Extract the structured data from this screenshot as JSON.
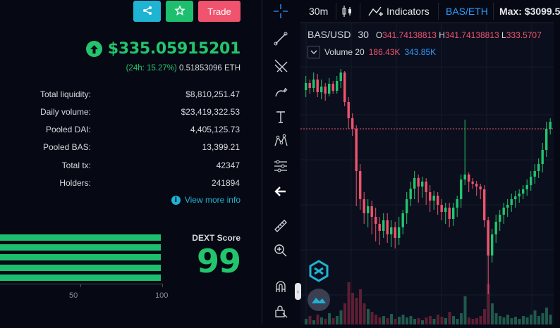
{
  "header_buttons": {
    "share_icon": "share-icon",
    "star_icon": "star-icon",
    "trade_label": "Trade"
  },
  "price": {
    "value": "$335.05915201",
    "change": "(24h: 15.27%)",
    "eth_value": "0.51853096 ETH"
  },
  "stats": [
    {
      "label": "Total liquidity:",
      "value": "$8,810,251.47"
    },
    {
      "label": "Daily volume:",
      "value": "$23,419,322.53"
    },
    {
      "label": "Pooled DAI:",
      "value": "4,405,125.73"
    },
    {
      "label": "Pooled BAS:",
      "value": "13,399.21"
    },
    {
      "label": "Total tx:",
      "value": "42347"
    },
    {
      "label": "Holders:",
      "value": "241894"
    }
  ],
  "view_more": "View more info",
  "dext": {
    "label": "DEXT Score",
    "score": "99",
    "axis_ticks": [
      "50",
      "100"
    ],
    "bars_percent": [
      100,
      100,
      100,
      100,
      100
    ]
  },
  "chart_toolbar": {
    "interval": "30m",
    "indicators_label": "Indicators",
    "pair": "BAS/ETH",
    "max_label": "Max: $3099.5"
  },
  "chart_legend": {
    "symbol": "BAS/USD",
    "interval": "30",
    "o_label": "O",
    "o_value": "341.74138813",
    "h_label": "H",
    "h_value": "341.74138813",
    "l_label": "L",
    "l_value": "333.5707",
    "volume_label": "Volume 20",
    "volume_a": "186.43K",
    "volume_b": "343.85K"
  },
  "colors": {
    "green": "#22c56e",
    "red": "#f0536e",
    "cyan": "#1fb3d4",
    "volume_green": "#1f5a4c",
    "volume_red": "#5e1e34"
  }
}
